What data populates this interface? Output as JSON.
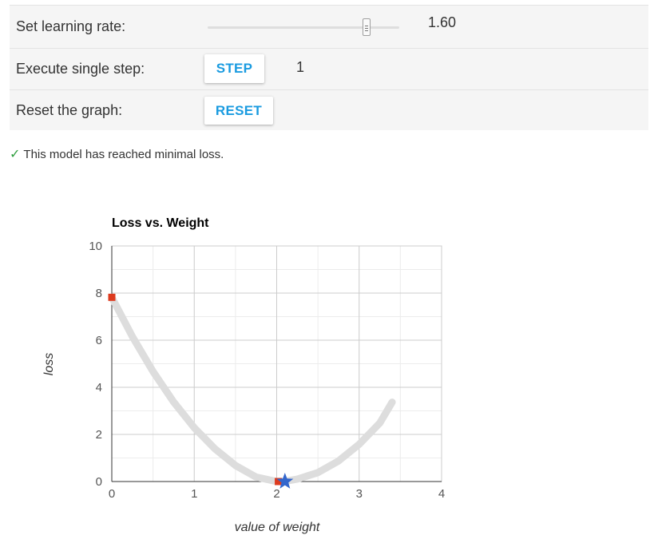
{
  "controls": {
    "learning_rate_label": "Set learning rate:",
    "learning_rate_value": "1.60",
    "learning_rate_slider_fraction": 0.82,
    "step_label": "Execute single step:",
    "step_button": "STEP",
    "step_count": "1",
    "reset_label": "Reset the graph:",
    "reset_button": "RESET"
  },
  "status": {
    "icon": "check-icon",
    "check_glyph": "✓",
    "message": "This model has reached minimal loss."
  },
  "colors": {
    "accent": "#1a9be0",
    "check": "#2e9e3e",
    "curve": "#dddddd",
    "marker": "#dd3b1f",
    "star": "#3366cc"
  },
  "chart_data": {
    "type": "line",
    "title": "Loss vs. Weight",
    "xlabel": "value of weight",
    "ylabel": "loss",
    "xlim": [
      0,
      4
    ],
    "ylim": [
      0,
      10
    ],
    "x_ticks": [
      0,
      1,
      2,
      3,
      4
    ],
    "y_ticks": [
      0,
      2,
      4,
      6,
      8,
      10
    ],
    "grid": true,
    "legend": "none",
    "series": [
      {
        "kind": "curve",
        "x": [
          0,
          0.25,
          0.5,
          0.75,
          1.0,
          1.25,
          1.5,
          1.75,
          2.0,
          2.1,
          2.25,
          2.5,
          2.75,
          3.0,
          3.25,
          3.4
        ],
        "y": [
          7.82,
          6.15,
          4.67,
          3.38,
          2.28,
          1.39,
          0.68,
          0.19,
          0.0,
          0.01,
          0.1,
          0.38,
          0.87,
          1.58,
          2.48,
          3.37
        ]
      },
      {
        "kind": "markers",
        "symbol": "square",
        "x": [
          0,
          2.02
        ],
        "y": [
          7.82,
          0.0
        ]
      },
      {
        "kind": "markers",
        "symbol": "star",
        "x": [
          2.1
        ],
        "y": [
          0.0
        ]
      }
    ]
  }
}
